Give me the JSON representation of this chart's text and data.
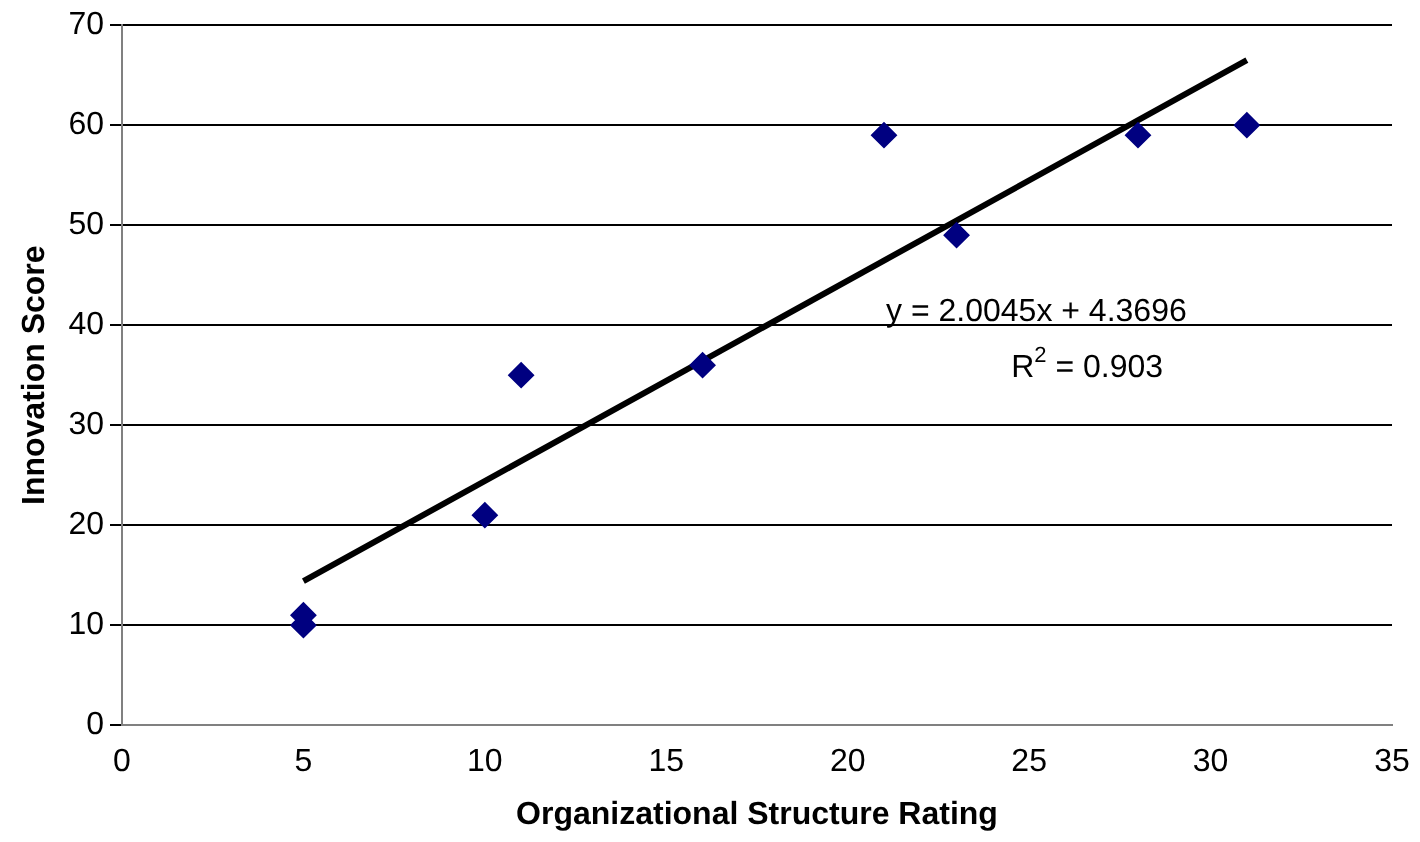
{
  "chart_data": {
    "type": "scatter",
    "xlabel": "Organizational Structure Rating",
    "ylabel": "Innovation Score",
    "series": [
      {
        "color": "#000080",
        "marker": "diamond",
        "x": [
          5,
          5,
          10,
          11,
          16,
          21,
          23,
          28,
          31
        ],
        "values": [
          11,
          10,
          21,
          35,
          36,
          59,
          49,
          59,
          60
        ]
      },
      {
        "type": "line",
        "color": "#000000",
        "marker": "none",
        "x": [
          5,
          31
        ],
        "values": [
          14.4,
          66.5
        ]
      }
    ],
    "xlim": [
      0,
      35
    ],
    "xticks": [
      0,
      5,
      10,
      15,
      20,
      25,
      30,
      35
    ],
    "ylim": [
      0,
      70
    ],
    "yticks": [
      0,
      10,
      20,
      30,
      40,
      50,
      60,
      70
    ],
    "grid": "y",
    "legend": false,
    "annotations": [
      "y = 2.0045x + 4.3696",
      "R$^{2}$ = 0.903"
    ]
  }
}
